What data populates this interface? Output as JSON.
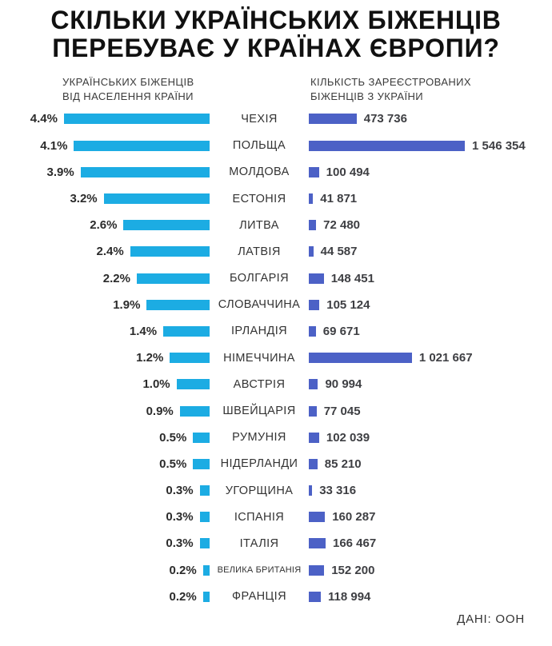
{
  "title": {
    "line1": "СКІЛЬКИ УКРАЇНСЬКИХ БІЖЕНЦІВ",
    "line2": "ПЕРЕБУВАЄ У КРАЇНАХ ЄВРОПИ?"
  },
  "columns": {
    "left_header_line1": "УКРАЇНСЬКИХ БІЖЕНЦІВ",
    "left_header_line2": "ВІД НАСЕЛЕННЯ КРАЇНИ",
    "right_header_line1": "КІЛЬКІСТЬ ЗАРЕЄСТРОВАНИХ",
    "right_header_line2": "БІЖЕНЦІВ З УКРАЇНИ"
  },
  "source": "ДАНІ: ООН",
  "colors": {
    "left_bar": "#1CACE3",
    "right_bar": "#4C61C6"
  },
  "chart_data": {
    "type": "bar",
    "variant": "diverging-horizontal",
    "title": "СКІЛЬКИ УКРАЇНСЬКИХ БІЖЕНЦІВ ПЕРЕБУВАЄ У КРАЇНАХ ЄВРОПИ?",
    "legend_position": "column-headers",
    "grid": false,
    "categories": [
      "ЧЕХІЯ",
      "ПОЛЬЩА",
      "МОЛДОВА",
      "ЕСТОНІЯ",
      "ЛИТВА",
      "ЛАТВІЯ",
      "БОЛГАРІЯ",
      "СЛОВАЧЧИНА",
      "ІРЛАНДІЯ",
      "НІМЕЧЧИНА",
      "АВСТРІЯ",
      "ШВЕЙЦАРІЯ",
      "РУМУНІЯ",
      "НІДЕРЛАНДИ",
      "УГОРЩИНА",
      "ІСПАНІЯ",
      "ІТАЛІЯ",
      "ВЕЛИКА БРИТАНІЯ",
      "ФРАНЦІЯ"
    ],
    "series": [
      {
        "name": "УКРАЇНСЬКИХ БІЖЕНЦІВ ВІД НАСЕЛЕННЯ КРАЇНИ",
        "unit": "percent",
        "direction": "left",
        "color": "#1CACE3",
        "values": [
          4.4,
          4.1,
          3.9,
          3.2,
          2.6,
          2.4,
          2.2,
          1.9,
          1.4,
          1.2,
          1.0,
          0.9,
          0.5,
          0.5,
          0.3,
          0.3,
          0.3,
          0.2,
          0.2
        ],
        "labels": [
          "4.4%",
          "4.1%",
          "3.9%",
          "3.2%",
          "2.6%",
          "2.4%",
          "2.2%",
          "1.9%",
          "1.4%",
          "1.2%",
          "1.0%",
          "0.9%",
          "0.5%",
          "0.5%",
          "0.3%",
          "0.3%",
          "0.3%",
          "0.2%",
          "0.2%"
        ],
        "range": [
          0,
          4.4
        ]
      },
      {
        "name": "КІЛЬКІСТЬ ЗАРЕЄСТРОВАНИХ БІЖЕНЦІВ З УКРАЇНИ",
        "unit": "people",
        "direction": "right",
        "color": "#4C61C6",
        "values": [
          473736,
          1546354,
          100494,
          41871,
          72480,
          44587,
          148451,
          105124,
          69671,
          1021667,
          90994,
          77045,
          102039,
          85210,
          33316,
          160287,
          166467,
          152200,
          118994
        ],
        "labels": [
          "473 736",
          "1 546 354",
          "100 494",
          "41 871",
          "72 480",
          "44 587",
          "148 451",
          "105 124",
          "69 671",
          "1 021 667",
          "90 994",
          "77 045",
          "102 039",
          "85 210",
          "33 316",
          "160 287",
          "166 467",
          "152 200",
          "118 994"
        ],
        "range": [
          0,
          1546354
        ]
      }
    ],
    "small_label_categories": [
      "ВЕЛИКА БРИТАНІЯ"
    ]
  }
}
